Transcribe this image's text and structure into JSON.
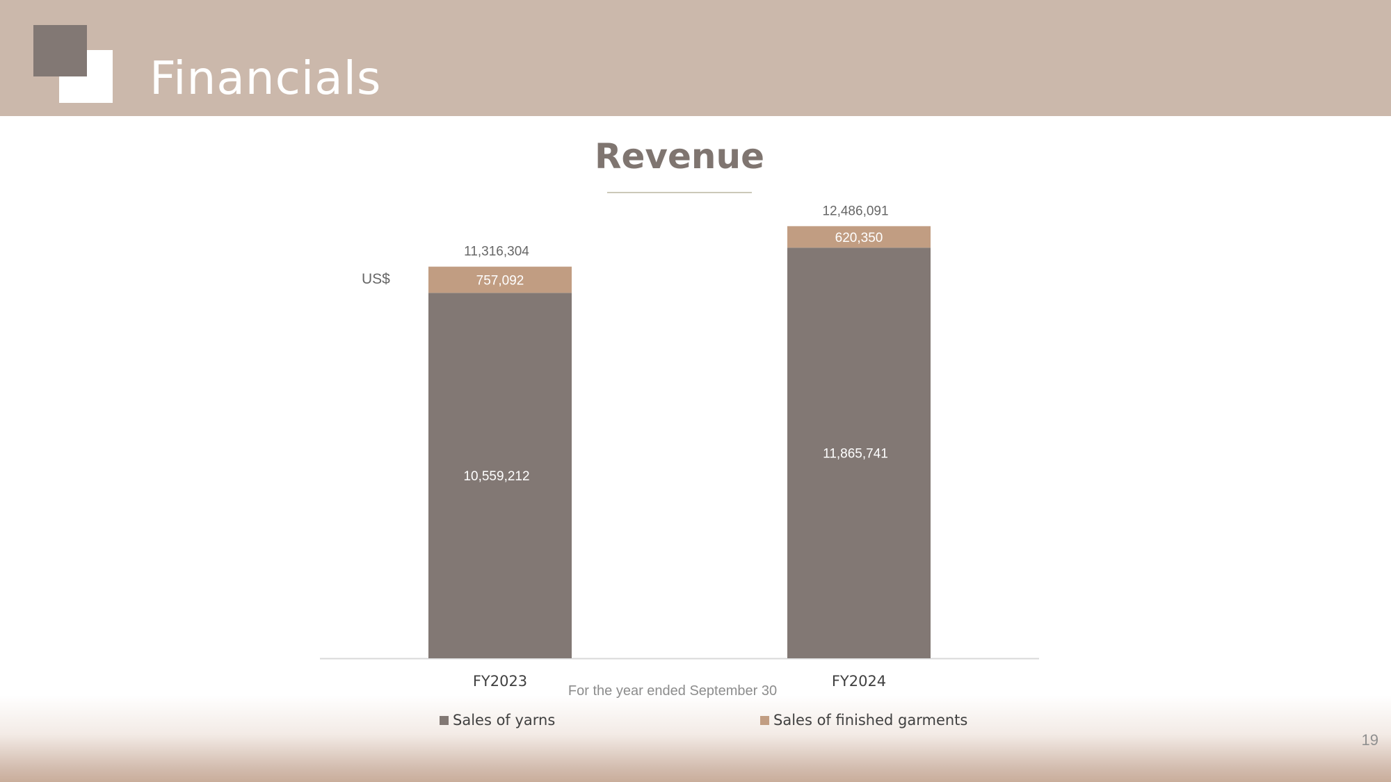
{
  "slide": {
    "title": "Financials",
    "page_number": "19"
  },
  "colors": {
    "header_bg": "#cbb8ab",
    "yarns": "#827874",
    "garments": "#c19d82",
    "axis": "#d9d9d9",
    "title_underline": "#cbc8b8"
  },
  "chart_data": {
    "type": "bar",
    "stacked": true,
    "title": "Revenue",
    "unit_label": "US$",
    "xlabel": "For the year ended September 30",
    "categories": [
      "FY2023",
      "FY2024"
    ],
    "series": [
      {
        "name": "Sales of yarns",
        "values": [
          10559212,
          11865741
        ],
        "labels": [
          "10,559,212",
          "11,865,741"
        ]
      },
      {
        "name": "Sales of finished garments",
        "values": [
          757092,
          620350
        ],
        "labels": [
          "757,092",
          "620,350"
        ]
      }
    ],
    "totals": [
      11316304,
      12486091
    ],
    "total_labels": [
      "11,316,304",
      "12,486,091"
    ],
    "ylim": [
      0,
      14000000
    ],
    "grid": false,
    "legend_position": "bottom"
  }
}
